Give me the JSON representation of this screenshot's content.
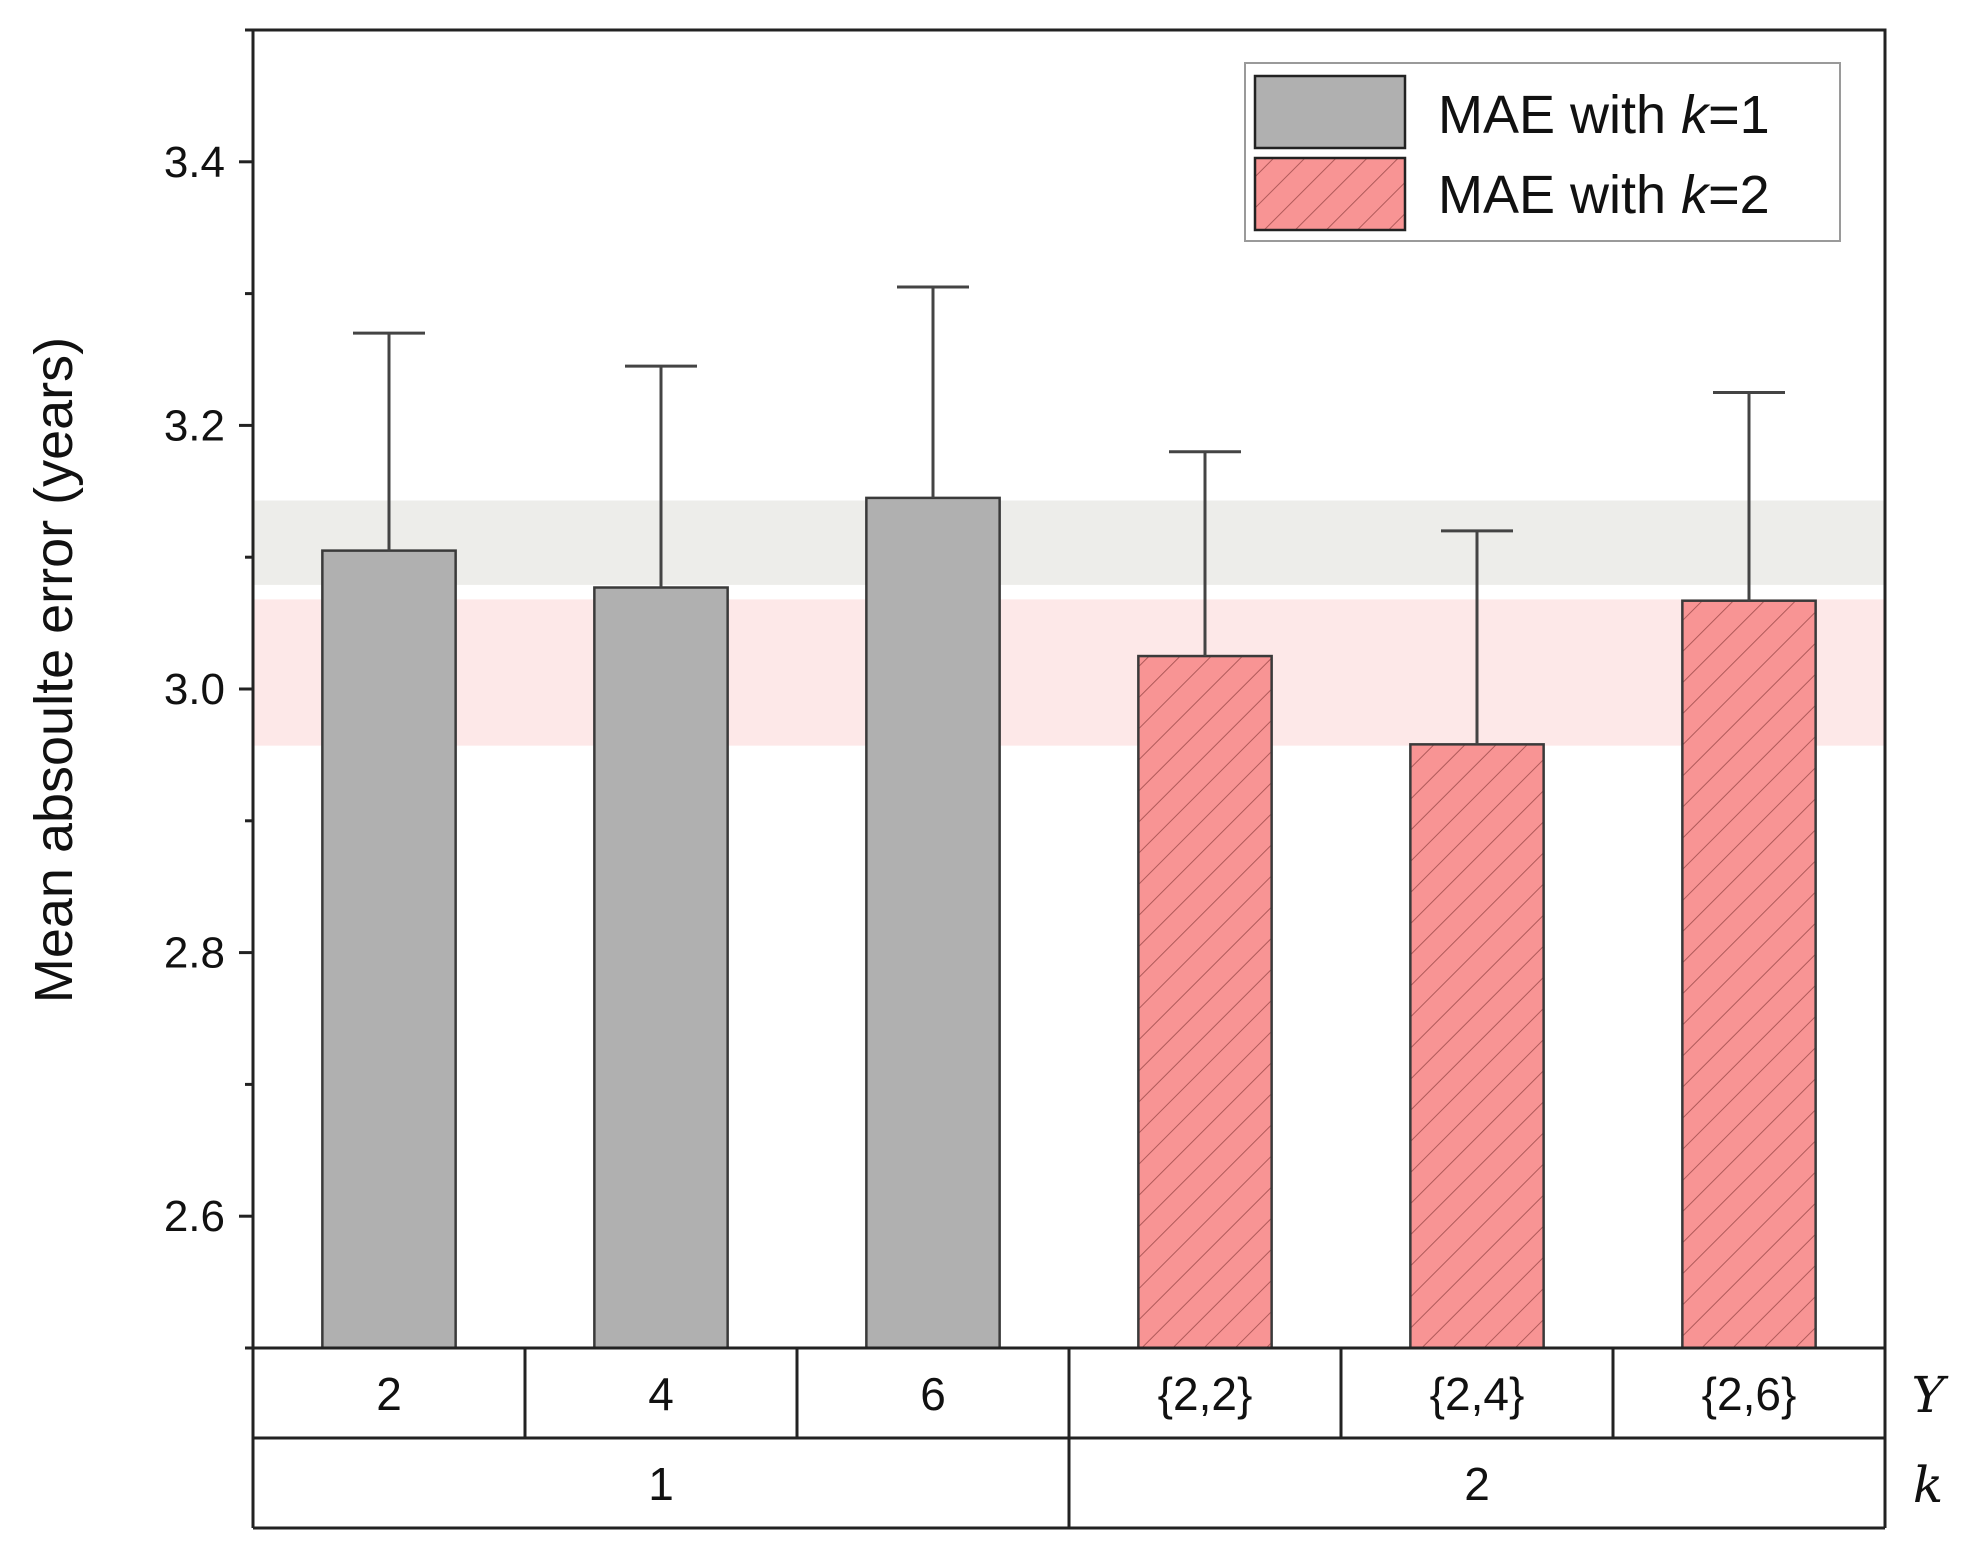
{
  "chart_data": {
    "type": "bar",
    "ylabel": "Mean absoulte error (years)",
    "ylim": [
      2.5,
      3.5
    ],
    "yticks": [
      2.6,
      2.8,
      3.0,
      3.2,
      3.4
    ],
    "ytick_labels": [
      "2.6",
      "2.8",
      "3.0",
      "3.2",
      "3.4"
    ],
    "categories": [
      "2",
      "4",
      "6",
      "{2,2}",
      "{2,4}",
      "{2,6}"
    ],
    "category_row_label": "Υ",
    "group_row_label": "k",
    "groups": [
      {
        "label": "1",
        "span": 3
      },
      {
        "label": "2",
        "span": 3
      }
    ],
    "series": [
      {
        "name": "MAE with k=1",
        "legend_prefix": "MAE with ",
        "legend_var": "k",
        "legend_suffix": "=1",
        "values": [
          3.105,
          3.077,
          3.145,
          null,
          null,
          null
        ],
        "error_upper": [
          3.27,
          3.245,
          3.305,
          null,
          null,
          null
        ],
        "color": "#b0b0b0",
        "hatch": false,
        "band": [
          3.079,
          3.143
        ],
        "band_color": "#ededea"
      },
      {
        "name": "MAE with k=2",
        "legend_prefix": "MAE with ",
        "legend_var": "k",
        "legend_suffix": "=2",
        "values": [
          null,
          null,
          null,
          3.025,
          2.958,
          3.067
        ],
        "error_upper": [
          null,
          null,
          null,
          3.18,
          3.12,
          3.225
        ],
        "color": "#f89494",
        "hatch": true,
        "band": [
          2.957,
          3.068
        ],
        "band_color": "#fde8e8"
      }
    ],
    "legend_position": "top-right",
    "grid": false
  }
}
